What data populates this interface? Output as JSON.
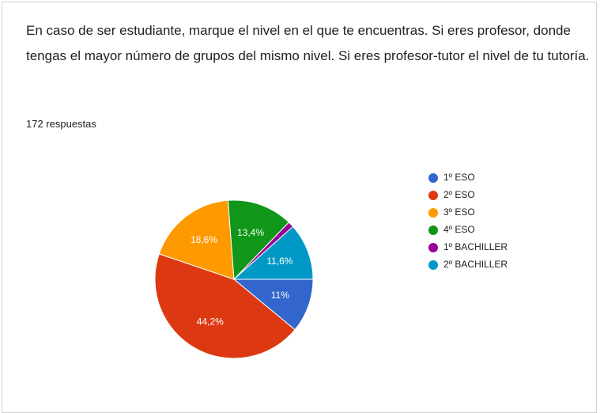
{
  "chart_data": {
    "type": "pie",
    "title": "En caso de ser estudiante, marque el nivel en el que te encuentras. Si eres profesor, donde tengas el mayor número de grupos del mismo nivel. Si eres profesor-tutor el nivel de tu tutoría.",
    "subtitle": "172 respuestas",
    "categories": [
      "1º ESO",
      "2º ESO",
      "3º ESO",
      "4º ESO",
      "1º BACHILLER",
      "2º BACHILLER"
    ],
    "values": [
      11,
      44.2,
      18.6,
      13.4,
      1.2,
      11.6
    ],
    "value_labels": [
      "11%",
      "44,2%",
      "18,6%",
      "13,4%",
      null,
      "11,6%"
    ],
    "colors": [
      "#3366cc",
      "#dc3912",
      "#ff9900",
      "#109618",
      "#990099",
      "#0099c6"
    ],
    "legend": "right"
  }
}
